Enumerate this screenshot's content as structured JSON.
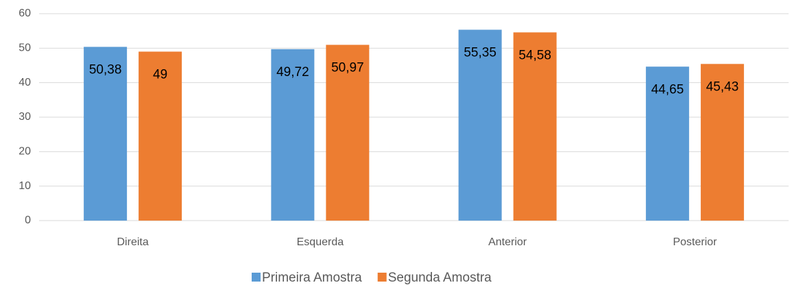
{
  "chart_data": {
    "type": "bar",
    "categories": [
      "Direita",
      "Esquerda",
      "Anterior",
      "Posterior"
    ],
    "series": [
      {
        "name": "Primeira Amostra",
        "color": "#5b9bd5",
        "values": [
          50.38,
          49.72,
          55.35,
          44.65
        ],
        "value_labels": [
          "50,38",
          "49,72",
          "55,35",
          "44,65"
        ]
      },
      {
        "name": "Segunda Amostra",
        "color": "#ed7d31",
        "values": [
          49,
          50.97,
          54.58,
          45.43
        ],
        "value_labels": [
          "49",
          "50,97",
          "54,58",
          "45,43"
        ]
      }
    ],
    "ylim": [
      0,
      60
    ],
    "yticks": [
      0,
      10,
      20,
      30,
      40,
      50,
      60
    ],
    "grid": true,
    "legend": "bottom"
  }
}
